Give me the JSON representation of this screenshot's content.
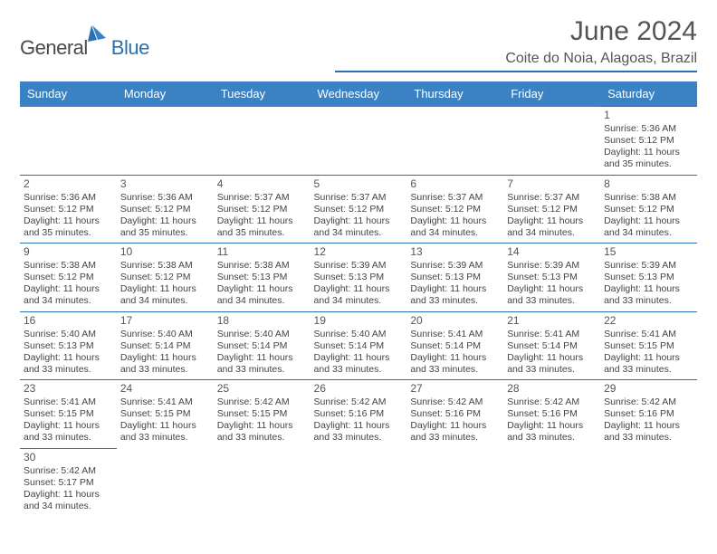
{
  "brand": {
    "general": "General",
    "blue": "Blue"
  },
  "header": {
    "month": "June 2024",
    "location": "Coite do Noia, Alagoas, Brazil"
  },
  "colors": {
    "header_bg": "#3b82c4",
    "border": "#2b6fb0",
    "text": "#444444",
    "title": "#555555"
  },
  "weekdays": [
    "Sunday",
    "Monday",
    "Tuesday",
    "Wednesday",
    "Thursday",
    "Friday",
    "Saturday"
  ],
  "weeks": [
    [
      null,
      null,
      null,
      null,
      null,
      null,
      {
        "d": "1",
        "sr": "Sunrise: 5:36 AM",
        "ss": "Sunset: 5:12 PM",
        "dl": "Daylight: 11 hours and 35 minutes."
      }
    ],
    [
      {
        "d": "2",
        "sr": "Sunrise: 5:36 AM",
        "ss": "Sunset: 5:12 PM",
        "dl": "Daylight: 11 hours and 35 minutes."
      },
      {
        "d": "3",
        "sr": "Sunrise: 5:36 AM",
        "ss": "Sunset: 5:12 PM",
        "dl": "Daylight: 11 hours and 35 minutes."
      },
      {
        "d": "4",
        "sr": "Sunrise: 5:37 AM",
        "ss": "Sunset: 5:12 PM",
        "dl": "Daylight: 11 hours and 35 minutes."
      },
      {
        "d": "5",
        "sr": "Sunrise: 5:37 AM",
        "ss": "Sunset: 5:12 PM",
        "dl": "Daylight: 11 hours and 34 minutes."
      },
      {
        "d": "6",
        "sr": "Sunrise: 5:37 AM",
        "ss": "Sunset: 5:12 PM",
        "dl": "Daylight: 11 hours and 34 minutes."
      },
      {
        "d": "7",
        "sr": "Sunrise: 5:37 AM",
        "ss": "Sunset: 5:12 PM",
        "dl": "Daylight: 11 hours and 34 minutes."
      },
      {
        "d": "8",
        "sr": "Sunrise: 5:38 AM",
        "ss": "Sunset: 5:12 PM",
        "dl": "Daylight: 11 hours and 34 minutes."
      }
    ],
    [
      {
        "d": "9",
        "sr": "Sunrise: 5:38 AM",
        "ss": "Sunset: 5:12 PM",
        "dl": "Daylight: 11 hours and 34 minutes."
      },
      {
        "d": "10",
        "sr": "Sunrise: 5:38 AM",
        "ss": "Sunset: 5:12 PM",
        "dl": "Daylight: 11 hours and 34 minutes."
      },
      {
        "d": "11",
        "sr": "Sunrise: 5:38 AM",
        "ss": "Sunset: 5:13 PM",
        "dl": "Daylight: 11 hours and 34 minutes."
      },
      {
        "d": "12",
        "sr": "Sunrise: 5:39 AM",
        "ss": "Sunset: 5:13 PM",
        "dl": "Daylight: 11 hours and 34 minutes."
      },
      {
        "d": "13",
        "sr": "Sunrise: 5:39 AM",
        "ss": "Sunset: 5:13 PM",
        "dl": "Daylight: 11 hours and 33 minutes."
      },
      {
        "d": "14",
        "sr": "Sunrise: 5:39 AM",
        "ss": "Sunset: 5:13 PM",
        "dl": "Daylight: 11 hours and 33 minutes."
      },
      {
        "d": "15",
        "sr": "Sunrise: 5:39 AM",
        "ss": "Sunset: 5:13 PM",
        "dl": "Daylight: 11 hours and 33 minutes."
      }
    ],
    [
      {
        "d": "16",
        "sr": "Sunrise: 5:40 AM",
        "ss": "Sunset: 5:13 PM",
        "dl": "Daylight: 11 hours and 33 minutes."
      },
      {
        "d": "17",
        "sr": "Sunrise: 5:40 AM",
        "ss": "Sunset: 5:14 PM",
        "dl": "Daylight: 11 hours and 33 minutes."
      },
      {
        "d": "18",
        "sr": "Sunrise: 5:40 AM",
        "ss": "Sunset: 5:14 PM",
        "dl": "Daylight: 11 hours and 33 minutes."
      },
      {
        "d": "19",
        "sr": "Sunrise: 5:40 AM",
        "ss": "Sunset: 5:14 PM",
        "dl": "Daylight: 11 hours and 33 minutes."
      },
      {
        "d": "20",
        "sr": "Sunrise: 5:41 AM",
        "ss": "Sunset: 5:14 PM",
        "dl": "Daylight: 11 hours and 33 minutes."
      },
      {
        "d": "21",
        "sr": "Sunrise: 5:41 AM",
        "ss": "Sunset: 5:14 PM",
        "dl": "Daylight: 11 hours and 33 minutes."
      },
      {
        "d": "22",
        "sr": "Sunrise: 5:41 AM",
        "ss": "Sunset: 5:15 PM",
        "dl": "Daylight: 11 hours and 33 minutes."
      }
    ],
    [
      {
        "d": "23",
        "sr": "Sunrise: 5:41 AM",
        "ss": "Sunset: 5:15 PM",
        "dl": "Daylight: 11 hours and 33 minutes."
      },
      {
        "d": "24",
        "sr": "Sunrise: 5:41 AM",
        "ss": "Sunset: 5:15 PM",
        "dl": "Daylight: 11 hours and 33 minutes."
      },
      {
        "d": "25",
        "sr": "Sunrise: 5:42 AM",
        "ss": "Sunset: 5:15 PM",
        "dl": "Daylight: 11 hours and 33 minutes."
      },
      {
        "d": "26",
        "sr": "Sunrise: 5:42 AM",
        "ss": "Sunset: 5:16 PM",
        "dl": "Daylight: 11 hours and 33 minutes."
      },
      {
        "d": "27",
        "sr": "Sunrise: 5:42 AM",
        "ss": "Sunset: 5:16 PM",
        "dl": "Daylight: 11 hours and 33 minutes."
      },
      {
        "d": "28",
        "sr": "Sunrise: 5:42 AM",
        "ss": "Sunset: 5:16 PM",
        "dl": "Daylight: 11 hours and 33 minutes."
      },
      {
        "d": "29",
        "sr": "Sunrise: 5:42 AM",
        "ss": "Sunset: 5:16 PM",
        "dl": "Daylight: 11 hours and 33 minutes."
      }
    ],
    [
      {
        "d": "30",
        "sr": "Sunrise: 5:42 AM",
        "ss": "Sunset: 5:17 PM",
        "dl": "Daylight: 11 hours and 34 minutes."
      },
      null,
      null,
      null,
      null,
      null,
      null
    ]
  ]
}
